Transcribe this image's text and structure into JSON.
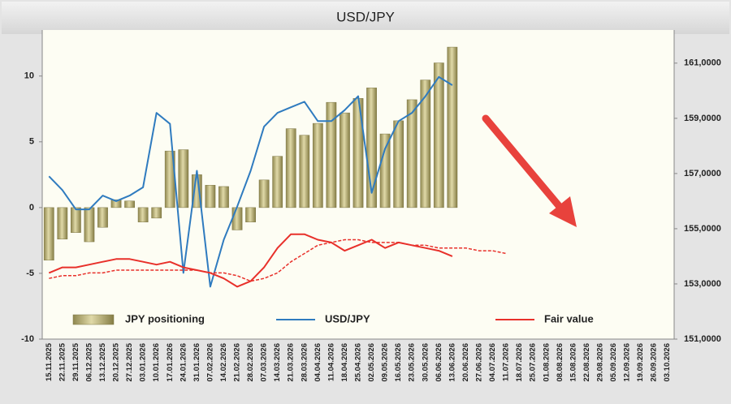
{
  "chart_data": {
    "type": "combo",
    "title": "USD/JPY",
    "categories": [
      "15.11.2025",
      "22.11.2025",
      "29.11.2025",
      "06.12.2025",
      "13.12.2025",
      "20.12.2025",
      "27.12.2025",
      "03.01.2026",
      "10.01.2026",
      "17.01.2026",
      "24.01.2026",
      "31.01.2026",
      "07.02.2026",
      "14.02.2026",
      "21.02.2026",
      "28.02.2026",
      "07.03.2026",
      "14.03.2026",
      "21.03.2026",
      "28.03.2026",
      "04.04.2026",
      "11.04.2026",
      "18.04.2026",
      "25.04.2026",
      "02.05.2026",
      "09.05.2026",
      "16.05.2026",
      "23.05.2026",
      "30.05.2026",
      "06.06.2026",
      "13.06.2026",
      "20.06.2026",
      "27.06.2026",
      "04.07.2026",
      "11.07.2026",
      "18.07.2026",
      "25.07.2026",
      "01.08.2026",
      "08.08.2026",
      "15.08.2026",
      "22.08.2026",
      "29.08.2026",
      "05.09.2026",
      "12.09.2026",
      "19.09.2026",
      "26.09.2026",
      "03.10.2026"
    ],
    "series": [
      {
        "name": "JPY positioning",
        "type": "bar",
        "color": "#b5ad72",
        "axis": "y",
        "values": [
          -4,
          -2.4,
          -1.9,
          -2.6,
          -1.5,
          0.6,
          0.5,
          -1.1,
          -0.8,
          4.3,
          4.4,
          2.5,
          1.7,
          1.6,
          -1.7,
          -1.1,
          2.1,
          3.9,
          6.0,
          5.5,
          6.4,
          8.0,
          7.2,
          8.3,
          9.1,
          5.6,
          6.6,
          8.2,
          9.7,
          11.0,
          12.2,
          null,
          null,
          null,
          null,
          null,
          null,
          null,
          null,
          null,
          null,
          null,
          null,
          null,
          null,
          null,
          null
        ]
      },
      {
        "name": "USD/JPY",
        "type": "line",
        "color": "#2f7bbf",
        "axis": "y2",
        "values": [
          156.9,
          156.4,
          155.7,
          155.7,
          156.2,
          156.0,
          156.2,
          156.5,
          159.2,
          158.8,
          153.4,
          157.1,
          152.9,
          154.6,
          155.8,
          157.1,
          158.7,
          159.2,
          159.4,
          159.6,
          158.9,
          158.9,
          159.3,
          159.8,
          156.3,
          157.9,
          158.9,
          159.2,
          159.8,
          160.5,
          160.2,
          null,
          null,
          null,
          null,
          null,
          null,
          null,
          null,
          null,
          null,
          null,
          null,
          null,
          null,
          null,
          null
        ]
      },
      {
        "name": "Fair value",
        "type": "line",
        "color": "#e8302a",
        "axis": "y2",
        "values": [
          153.4,
          153.6,
          153.6,
          153.7,
          153.8,
          153.9,
          153.9,
          153.8,
          153.7,
          153.8,
          153.6,
          153.5,
          153.4,
          153.2,
          152.9,
          153.1,
          153.6,
          154.3,
          154.8,
          154.8,
          154.6,
          154.5,
          154.2,
          154.4,
          154.6,
          154.3,
          154.5,
          154.4,
          154.3,
          154.2,
          154.0,
          null,
          null,
          null,
          null,
          null,
          null,
          null,
          null,
          null,
          null,
          null,
          null,
          null,
          null,
          null,
          null
        ]
      },
      {
        "type": "line",
        "color": "#e8302a",
        "axis": "y2",
        "dash": true,
        "values": [
          153.2,
          153.3,
          153.3,
          153.4,
          153.4,
          153.5,
          153.5,
          153.5,
          153.5,
          153.5,
          153.5,
          153.5,
          153.4,
          153.4,
          153.3,
          153.1,
          153.2,
          153.4,
          153.8,
          154.1,
          154.4,
          154.5,
          154.6,
          154.6,
          154.5,
          154.5,
          154.5,
          154.4,
          154.4,
          154.3,
          154.3,
          154.3,
          154.2,
          154.2,
          154.1,
          null,
          null,
          null,
          null,
          null,
          null,
          null,
          null,
          null,
          null,
          null,
          null
        ]
      }
    ],
    "ylim": [
      -10,
      13.5
    ],
    "yticks": [
      -10,
      -5,
      0,
      5,
      10
    ],
    "y2lim": [
      151,
      162.2
    ],
    "y2ticks": [
      {
        "value": 151,
        "label": "151,0000"
      },
      {
        "value": 153,
        "label": "153,0000"
      },
      {
        "value": 155,
        "label": "155,0000"
      },
      {
        "value": 157,
        "label": "157,0000"
      },
      {
        "value": 159,
        "label": "159,0000"
      },
      {
        "value": 161,
        "label": "161,0000"
      }
    ]
  }
}
